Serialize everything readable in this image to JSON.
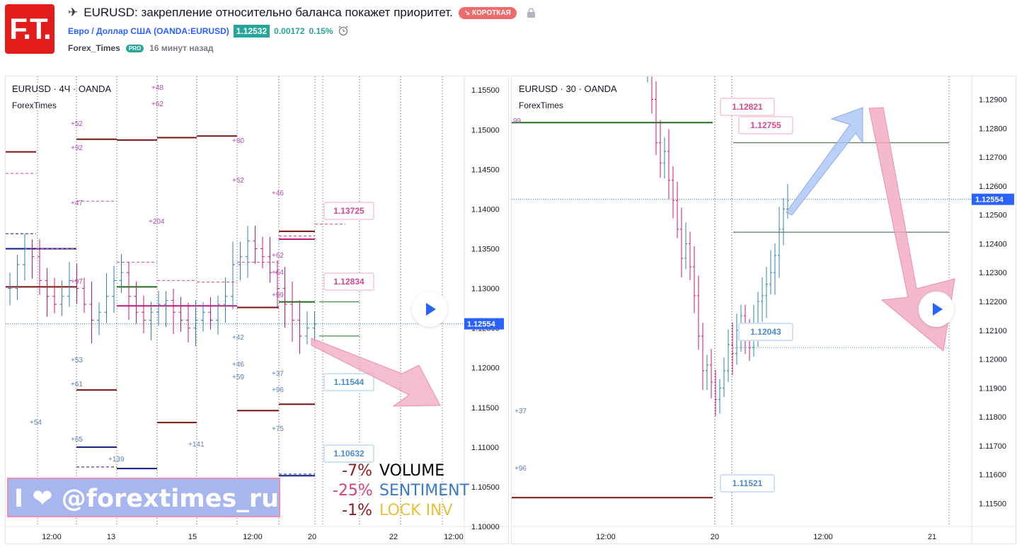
{
  "header": {
    "logo_text": "F.T.",
    "title": "EURUSD: закрепление относительно баланса покажет приоритет.",
    "badge": "↘ КОРОТКАЯ",
    "symbol_name": "Евро / Доллар США",
    "symbol_code": "(OANDA:EURUSD)",
    "price": "1.12532",
    "change": "0.00172",
    "change_pct": "0.15%",
    "author": "Forex_Times",
    "pro": "PRO",
    "time_ago": "16 минут назад",
    "title_icon": "rocket-icon",
    "lock_icon": "lock-icon",
    "alarm_icon": "alarm-clock-icon"
  },
  "watermark": {
    "text": "I ❤ @forextimes_ru"
  },
  "stats": [
    {
      "value": "-7%",
      "name": "VOLUME",
      "value_color": "#8b1a1a",
      "name_color": "#000000"
    },
    {
      "value": "-25%",
      "name": "SENTIMENT",
      "value_color": "#d0456e",
      "name_color": "#3a78c8"
    },
    {
      "value": "-1%",
      "name": "LOCK INV",
      "value_color": "#8b1a1a",
      "name_color": "#e8c13a"
    }
  ],
  "chart_data": [
    {
      "type": "candlestick",
      "symbol": "EURUSD",
      "interval": "4Ч",
      "source": "OANDA",
      "indicator": "ForexTimes",
      "ylim": [
        1.1,
        1.156
      ],
      "y_ticks": [
        "1.15500",
        "1.15000",
        "1.14500",
        "1.14000",
        "1.13500",
        "1.13000",
        "1.12500",
        "1.12000",
        "1.11500",
        "1.11000",
        "1.10500",
        "1.10000"
      ],
      "x_ticks": [
        "12:00",
        "13",
        "15",
        "12:00",
        "20",
        "22",
        "12:00"
      ],
      "last_price": "1.12554",
      "callouts": [
        "1.13725",
        "1.12834",
        "1.11544",
        "1.10632"
      ],
      "volume_labels": [
        "+48",
        "+62",
        "+52",
        "+92",
        "+80",
        "+52",
        "+46",
        "+47",
        "+204",
        "+62",
        "+64",
        "+97",
        "+99",
        "+42",
        "+53",
        "+46",
        "+59",
        "+37",
        "+61",
        "+96",
        "+75",
        "+54",
        "+65",
        "+141",
        "+139"
      ],
      "levels": [
        {
          "price": 1.1472,
          "color": "#7a1313"
        },
        {
          "price": 1.1488,
          "color": "#7a1313"
        },
        {
          "price": 1.1487,
          "color": "#7a1313"
        },
        {
          "price": 1.149,
          "color": "#7a1313"
        },
        {
          "price": 1.1492,
          "color": "#7a1313"
        },
        {
          "price": 1.1372,
          "color": "#7a1313"
        },
        {
          "price": 1.1362,
          "color": "#c2187a"
        },
        {
          "price": 1.135,
          "color": "#0d1a8a"
        },
        {
          "price": 1.1302,
          "color": "#7a1313"
        },
        {
          "price": 1.1302,
          "color": "#1f6e1f"
        },
        {
          "price": 1.1283,
          "color": "#1f6e1f"
        },
        {
          "price": 1.1278,
          "color": "#c2187a"
        },
        {
          "price": 1.1276,
          "color": "#7a1313"
        },
        {
          "price": 1.1172,
          "color": "#7a1313"
        },
        {
          "price": 1.1154,
          "color": "#7a1313"
        },
        {
          "price": 1.1146,
          "color": "#7a1313"
        },
        {
          "price": 1.1131,
          "color": "#7a1313"
        },
        {
          "price": 1.11,
          "color": "#0d1a8a"
        },
        {
          "price": 1.1073,
          "color": "#0d1a8a"
        },
        {
          "price": 1.1064,
          "color": "#0d1a8a"
        }
      ]
    },
    {
      "type": "candlestick",
      "symbol": "EURUSD",
      "interval": "30",
      "source": "OANDA",
      "indicator": "ForexTimes",
      "ylim": [
        1.1142,
        1.1298
      ],
      "y_ticks": [
        "1.12900",
        "1.12800",
        "1.12700",
        "1.12600",
        "1.12500",
        "1.12400",
        "1.12300",
        "1.12200",
        "1.12100",
        "1.12000",
        "1.11900",
        "1.11800",
        "1.11700",
        "1.11600",
        "1.11500"
      ],
      "x_ticks": [
        "12:00",
        "20",
        "12:00",
        "21"
      ],
      "last_price": "1.12554",
      "callouts": [
        "1.12821",
        "1.12755",
        "1.12043",
        "1.11521"
      ],
      "volume_labels": [
        "99",
        "+37",
        "+96"
      ],
      "levels": [
        {
          "price": 1.1282,
          "color": "#1f6e1f"
        },
        {
          "price": 1.1275,
          "color": "#2d5a2d"
        },
        {
          "price": 1.1244,
          "color": "#2d5a2d"
        },
        {
          "price": 1.1152,
          "color": "#7a1313"
        }
      ]
    }
  ],
  "colors": {
    "up": "#2f7fb5",
    "down": "#c2187a",
    "accent_blue": "#2962ff",
    "green": "#26a69a",
    "short_red": "#f06b6b"
  }
}
